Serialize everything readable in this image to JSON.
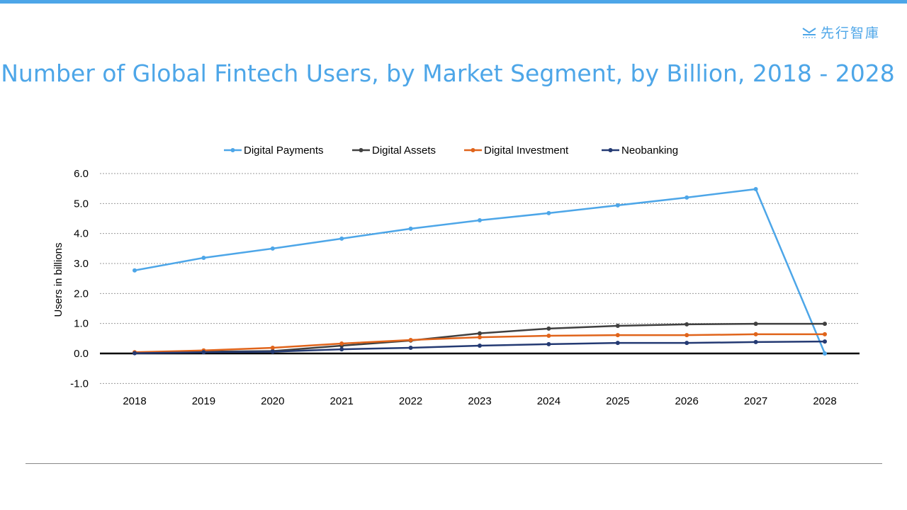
{
  "logo": {
    "text": "先行智庫",
    "icon": "logo-mark-icon"
  },
  "chart_data": {
    "type": "line",
    "title": "Number of Global Fintech Users, by Market Segment, by Billion, 2018 - 2028",
    "xlabel": "",
    "ylabel": "Users in billions",
    "ylim": [
      -1.0,
      6.0
    ],
    "yticks": [
      "-1.0",
      "0.0",
      "1.0",
      "2.0",
      "3.0",
      "4.0",
      "5.0",
      "6.0"
    ],
    "grid": true,
    "legend_position": "top",
    "categories": [
      "2018",
      "2019",
      "2020",
      "2021",
      "2022",
      "2023",
      "2024",
      "2025",
      "2026",
      "2027",
      "2028"
    ],
    "series": [
      {
        "name": "Digital Payments",
        "color": "#4da6e8",
        "values": [
          2.77,
          3.19,
          3.5,
          3.83,
          4.16,
          4.44,
          4.68,
          4.94,
          5.2,
          5.48,
          0
        ]
      },
      {
        "name": "Digital Assets",
        "color": "#404040",
        "values": [
          0.02,
          0.06,
          0.08,
          0.26,
          0.43,
          0.67,
          0.83,
          0.92,
          0.97,
          0.99,
          0.99
        ]
      },
      {
        "name": "Digital Investment",
        "color": "#e0641b",
        "values": [
          0.04,
          0.1,
          0.19,
          0.33,
          0.45,
          0.54,
          0.59,
          0.61,
          0.61,
          0.64,
          0.64
        ]
      },
      {
        "name": "Neobanking",
        "color": "#243a73",
        "values": [
          0.01,
          0.04,
          0.06,
          0.14,
          0.19,
          0.26,
          0.31,
          0.35,
          0.35,
          0.38,
          0.4
        ]
      }
    ]
  }
}
